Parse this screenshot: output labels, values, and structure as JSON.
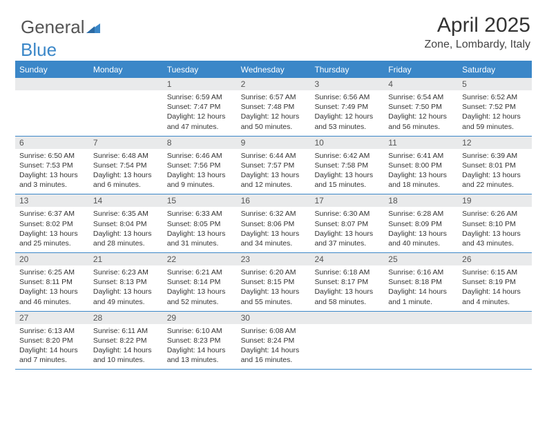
{
  "logo": {
    "part1": "General",
    "part2": "Blue"
  },
  "title": "April 2025",
  "location": "Zone, Lombardy, Italy",
  "colors": {
    "accent": "#3b87c8",
    "dayNumBg": "#e9eaeb",
    "text": "#333333",
    "background": "#ffffff"
  },
  "dayNames": [
    "Sunday",
    "Monday",
    "Tuesday",
    "Wednesday",
    "Thursday",
    "Friday",
    "Saturday"
  ],
  "weeks": [
    [
      {
        "num": "",
        "sunrise": "",
        "sunset": "",
        "daylight": "",
        "empty": true
      },
      {
        "num": "",
        "sunrise": "",
        "sunset": "",
        "daylight": "",
        "empty": true
      },
      {
        "num": "1",
        "sunrise": "Sunrise: 6:59 AM",
        "sunset": "Sunset: 7:47 PM",
        "daylight": "Daylight: 12 hours and 47 minutes."
      },
      {
        "num": "2",
        "sunrise": "Sunrise: 6:57 AM",
        "sunset": "Sunset: 7:48 PM",
        "daylight": "Daylight: 12 hours and 50 minutes."
      },
      {
        "num": "3",
        "sunrise": "Sunrise: 6:56 AM",
        "sunset": "Sunset: 7:49 PM",
        "daylight": "Daylight: 12 hours and 53 minutes."
      },
      {
        "num": "4",
        "sunrise": "Sunrise: 6:54 AM",
        "sunset": "Sunset: 7:50 PM",
        "daylight": "Daylight: 12 hours and 56 minutes."
      },
      {
        "num": "5",
        "sunrise": "Sunrise: 6:52 AM",
        "sunset": "Sunset: 7:52 PM",
        "daylight": "Daylight: 12 hours and 59 minutes."
      }
    ],
    [
      {
        "num": "6",
        "sunrise": "Sunrise: 6:50 AM",
        "sunset": "Sunset: 7:53 PM",
        "daylight": "Daylight: 13 hours and 3 minutes."
      },
      {
        "num": "7",
        "sunrise": "Sunrise: 6:48 AM",
        "sunset": "Sunset: 7:54 PM",
        "daylight": "Daylight: 13 hours and 6 minutes."
      },
      {
        "num": "8",
        "sunrise": "Sunrise: 6:46 AM",
        "sunset": "Sunset: 7:56 PM",
        "daylight": "Daylight: 13 hours and 9 minutes."
      },
      {
        "num": "9",
        "sunrise": "Sunrise: 6:44 AM",
        "sunset": "Sunset: 7:57 PM",
        "daylight": "Daylight: 13 hours and 12 minutes."
      },
      {
        "num": "10",
        "sunrise": "Sunrise: 6:42 AM",
        "sunset": "Sunset: 7:58 PM",
        "daylight": "Daylight: 13 hours and 15 minutes."
      },
      {
        "num": "11",
        "sunrise": "Sunrise: 6:41 AM",
        "sunset": "Sunset: 8:00 PM",
        "daylight": "Daylight: 13 hours and 18 minutes."
      },
      {
        "num": "12",
        "sunrise": "Sunrise: 6:39 AM",
        "sunset": "Sunset: 8:01 PM",
        "daylight": "Daylight: 13 hours and 22 minutes."
      }
    ],
    [
      {
        "num": "13",
        "sunrise": "Sunrise: 6:37 AM",
        "sunset": "Sunset: 8:02 PM",
        "daylight": "Daylight: 13 hours and 25 minutes."
      },
      {
        "num": "14",
        "sunrise": "Sunrise: 6:35 AM",
        "sunset": "Sunset: 8:04 PM",
        "daylight": "Daylight: 13 hours and 28 minutes."
      },
      {
        "num": "15",
        "sunrise": "Sunrise: 6:33 AM",
        "sunset": "Sunset: 8:05 PM",
        "daylight": "Daylight: 13 hours and 31 minutes."
      },
      {
        "num": "16",
        "sunrise": "Sunrise: 6:32 AM",
        "sunset": "Sunset: 8:06 PM",
        "daylight": "Daylight: 13 hours and 34 minutes."
      },
      {
        "num": "17",
        "sunrise": "Sunrise: 6:30 AM",
        "sunset": "Sunset: 8:07 PM",
        "daylight": "Daylight: 13 hours and 37 minutes."
      },
      {
        "num": "18",
        "sunrise": "Sunrise: 6:28 AM",
        "sunset": "Sunset: 8:09 PM",
        "daylight": "Daylight: 13 hours and 40 minutes."
      },
      {
        "num": "19",
        "sunrise": "Sunrise: 6:26 AM",
        "sunset": "Sunset: 8:10 PM",
        "daylight": "Daylight: 13 hours and 43 minutes."
      }
    ],
    [
      {
        "num": "20",
        "sunrise": "Sunrise: 6:25 AM",
        "sunset": "Sunset: 8:11 PM",
        "daylight": "Daylight: 13 hours and 46 minutes."
      },
      {
        "num": "21",
        "sunrise": "Sunrise: 6:23 AM",
        "sunset": "Sunset: 8:13 PM",
        "daylight": "Daylight: 13 hours and 49 minutes."
      },
      {
        "num": "22",
        "sunrise": "Sunrise: 6:21 AM",
        "sunset": "Sunset: 8:14 PM",
        "daylight": "Daylight: 13 hours and 52 minutes."
      },
      {
        "num": "23",
        "sunrise": "Sunrise: 6:20 AM",
        "sunset": "Sunset: 8:15 PM",
        "daylight": "Daylight: 13 hours and 55 minutes."
      },
      {
        "num": "24",
        "sunrise": "Sunrise: 6:18 AM",
        "sunset": "Sunset: 8:17 PM",
        "daylight": "Daylight: 13 hours and 58 minutes."
      },
      {
        "num": "25",
        "sunrise": "Sunrise: 6:16 AM",
        "sunset": "Sunset: 8:18 PM",
        "daylight": "Daylight: 14 hours and 1 minute."
      },
      {
        "num": "26",
        "sunrise": "Sunrise: 6:15 AM",
        "sunset": "Sunset: 8:19 PM",
        "daylight": "Daylight: 14 hours and 4 minutes."
      }
    ],
    [
      {
        "num": "27",
        "sunrise": "Sunrise: 6:13 AM",
        "sunset": "Sunset: 8:20 PM",
        "daylight": "Daylight: 14 hours and 7 minutes."
      },
      {
        "num": "28",
        "sunrise": "Sunrise: 6:11 AM",
        "sunset": "Sunset: 8:22 PM",
        "daylight": "Daylight: 14 hours and 10 minutes."
      },
      {
        "num": "29",
        "sunrise": "Sunrise: 6:10 AM",
        "sunset": "Sunset: 8:23 PM",
        "daylight": "Daylight: 14 hours and 13 minutes."
      },
      {
        "num": "30",
        "sunrise": "Sunrise: 6:08 AM",
        "sunset": "Sunset: 8:24 PM",
        "daylight": "Daylight: 14 hours and 16 minutes."
      },
      {
        "num": "",
        "sunrise": "",
        "sunset": "",
        "daylight": "",
        "empty": true
      },
      {
        "num": "",
        "sunrise": "",
        "sunset": "",
        "daylight": "",
        "empty": true
      },
      {
        "num": "",
        "sunrise": "",
        "sunset": "",
        "daylight": "",
        "empty": true
      }
    ]
  ]
}
